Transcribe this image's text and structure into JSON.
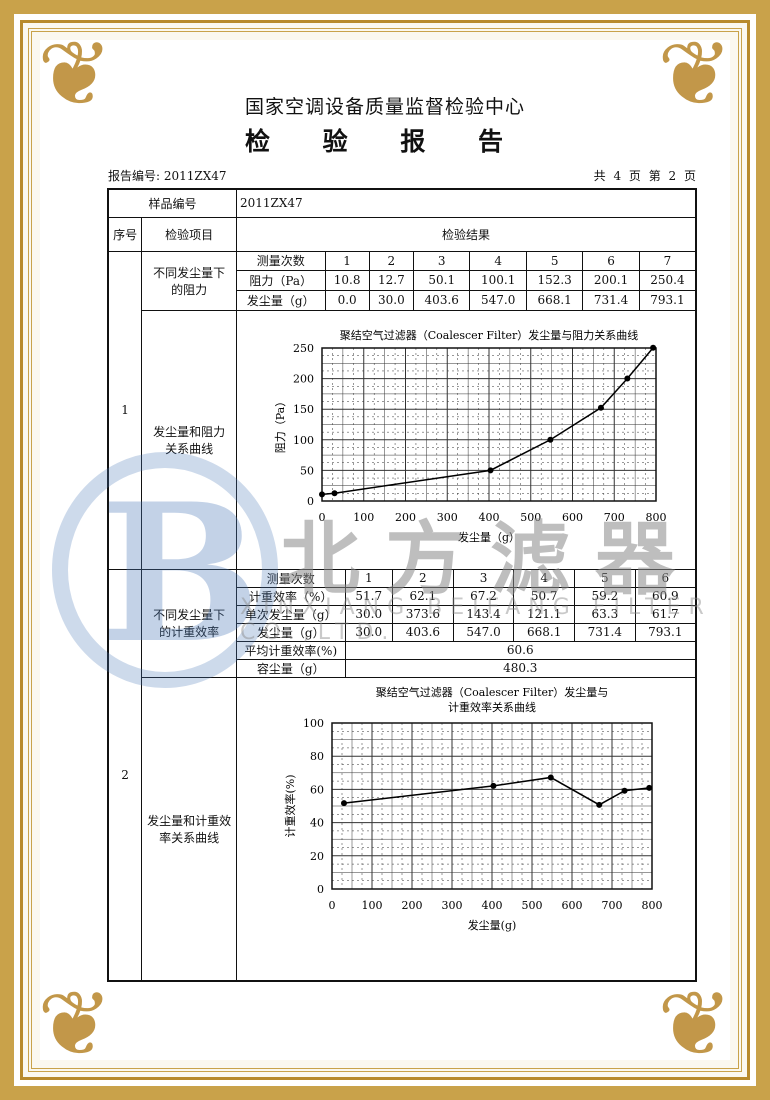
{
  "header": {
    "org": "国家空调设备质量监督检验中心",
    "title": "检 验 报 告",
    "report_no": "报告编号: 2011ZX47",
    "pages": "共 4 页 第 2 页"
  },
  "table": {
    "sample_label": "样品编号",
    "sample_value": "2011ZX47",
    "col_seq": "序号",
    "col_item": "检验项目",
    "col_result": "检验结果",
    "items": [
      {
        "seq": "1",
        "name1": "不同发尘量下的阻力",
        "name2": "发尘量和阻力关系曲线"
      },
      {
        "seq": "2",
        "name1": "不同发尘量下的计重效率",
        "name2": "发尘量和计重效率关系曲线"
      }
    ],
    "resistance_table": {
      "rows": [
        [
          "测量次数",
          "1",
          "2",
          "3",
          "4",
          "5",
          "6",
          "7"
        ],
        [
          "阻力（Pa）",
          "10.8",
          "12.7",
          "50.1",
          "100.1",
          "152.3",
          "200.1",
          "250.4"
        ],
        [
          "发尘量（g）",
          "0.0",
          "30.0",
          "403.6",
          "547.0",
          "668.1",
          "731.4",
          "793.1"
        ]
      ]
    },
    "efficiency_table": {
      "rows": [
        [
          "测量次数",
          "1",
          "2",
          "3",
          "4",
          "5",
          "6"
        ],
        [
          "计重效率（%）",
          "51.7",
          "62.1",
          "67.2",
          "50.7",
          "59.2",
          "60.9"
        ],
        [
          "单次发尘量（g）",
          "30.0",
          "373.6",
          "143.4",
          "121.1",
          "63.3",
          "61.7"
        ],
        [
          "发尘量（g）",
          "30.0",
          "403.6",
          "547.0",
          "668.1",
          "731.4",
          "793.1"
        ]
      ],
      "avg_label": "平均计重效率(%)",
      "avg_value": "60.6",
      "capacity_label": "容尘量（g）",
      "capacity_value": "480.3"
    }
  },
  "chart_data": [
    {
      "type": "line",
      "title": "聚结空气过滤器（Coalescer Filter）发尘量与阻力关系曲线",
      "xlabel": "发尘量（g）",
      "ylabel": "阻力（Pa）",
      "x": [
        0,
        30,
        403.6,
        547,
        668.1,
        731.4,
        793.1
      ],
      "y": [
        10.8,
        12.7,
        50.1,
        100.1,
        152.3,
        200.1,
        250.4
      ],
      "xlim": [
        0,
        800
      ],
      "ylim": [
        0,
        250
      ],
      "xticks": [
        0,
        100,
        200,
        300,
        400,
        500,
        600,
        700,
        800
      ],
      "yticks": [
        0,
        50,
        100,
        150,
        200,
        250
      ],
      "grid": true
    },
    {
      "type": "line",
      "title": "聚结空气过滤器（Coalescer Filter）发尘量与",
      "title2": "计重效率关系曲线",
      "xlabel": "发尘量(g)",
      "ylabel": "计重效率(%)",
      "x": [
        30,
        403.6,
        547,
        668.1,
        731.4,
        793.1
      ],
      "y": [
        51.7,
        62.1,
        67.2,
        50.7,
        59.2,
        60.9
      ],
      "xlim": [
        0,
        800
      ],
      "ylim": [
        0,
        100
      ],
      "xticks": [
        0,
        100,
        200,
        300,
        400,
        500,
        600,
        700,
        800
      ],
      "yticks": [
        0,
        20,
        40,
        60,
        80,
        100
      ],
      "grid": true
    }
  ],
  "watermark": {
    "cn": "北方滤器",
    "en": "XINXIANG BEIFANG FILTER CO.,LTD.",
    "logo_color": "#4a78b8",
    "text_color": "#8a8a8a"
  },
  "colors": {
    "border_gold": "#c9a24a"
  }
}
